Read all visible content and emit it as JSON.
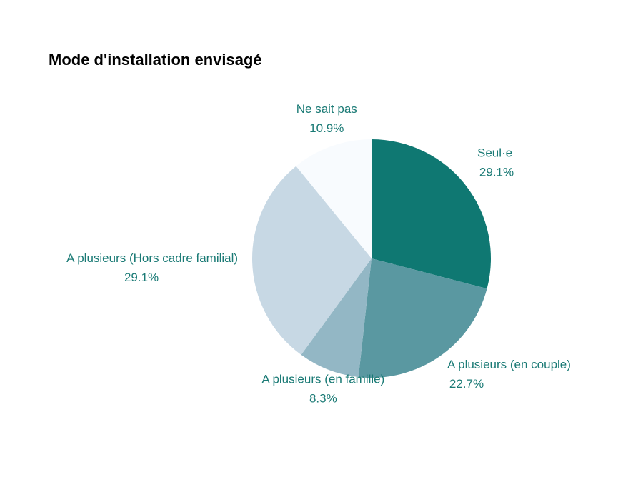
{
  "chart_data": {
    "type": "pie",
    "title": "Mode d'installation envisagé",
    "categories": [
      "Seul·e",
      "A plusieurs (en couple)",
      "A plusieurs (en famille)",
      "A plusieurs (Hors cadre familial)",
      "Ne sait pas"
    ],
    "values": [
      29.1,
      22.7,
      8.3,
      29.1,
      10.9
    ],
    "value_labels": [
      "29.1%",
      "22.7%",
      "8.3%",
      "29.1%",
      "10.9%"
    ],
    "colors": [
      "#0f7872",
      "#5a98a1",
      "#93b7c5",
      "#c7d8e4",
      "#f8fbfe"
    ]
  }
}
